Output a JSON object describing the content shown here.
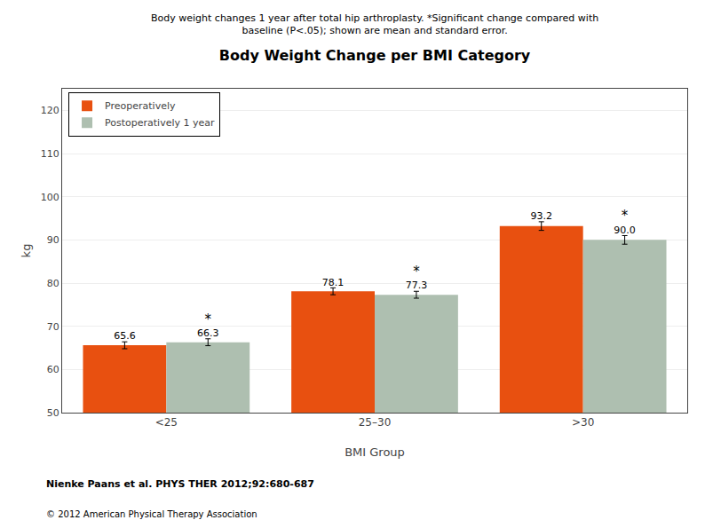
{
  "chart_data": {
    "type": "bar",
    "title": "Body Weight Change per BMI Category",
    "subtitle": [
      "Body weight changes 1 year after total hip arthroplasty. *Significant change compared with",
      "baseline (P<.05); shown are mean and standard error."
    ],
    "xlabel": "BMI Group",
    "ylabel": "kg",
    "categories": [
      "<25",
      "25–30",
      ">30"
    ],
    "series": [
      {
        "name": "Preoperatively",
        "color": "#E85010",
        "values": [
          65.6,
          78.1,
          93.2
        ],
        "value_labels": [
          "65.6",
          "78.1",
          "93.2"
        ],
        "errors": [
          0.8,
          0.8,
          1.0
        ]
      },
      {
        "name": "Postoperatively 1 year",
        "color": "#AEBFB0",
        "values": [
          66.3,
          77.3,
          90.0
        ],
        "value_labels": [
          "66.3",
          "77.3",
          "90.0"
        ],
        "errors": [
          0.8,
          0.8,
          1.0
        ],
        "significance_labels": [
          "*",
          "*",
          "*"
        ]
      }
    ],
    "ylim": [
      50,
      125
    ],
    "yticks": [
      50,
      60,
      70,
      80,
      90,
      100,
      110,
      120
    ],
    "grid": true,
    "legend": "upper left",
    "data_labels": true,
    "annotations": [
      "Nienke Paans et al. PHYS THER 2012;92:680-687",
      "© 2012 American Physical Therapy Association"
    ]
  }
}
